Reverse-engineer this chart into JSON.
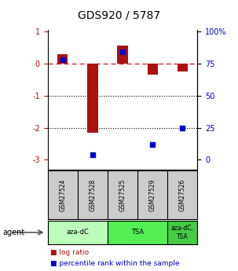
{
  "title": "GDS920 / 5787",
  "samples": [
    "GSM27524",
    "GSM27528",
    "GSM27525",
    "GSM27529",
    "GSM27526"
  ],
  "log_ratios": [
    0.3,
    -2.15,
    0.55,
    -0.35,
    -0.25
  ],
  "percentile_ranks": [
    78,
    4,
    84,
    12,
    25
  ],
  "bar_color_red": "#aa1111",
  "bar_color_blue": "#0000cc",
  "ylim": [
    -3.3,
    1.05
  ],
  "yticks_left": [
    -3,
    -2,
    -1,
    0,
    1
  ],
  "yticks_right_vals": [
    0,
    25,
    50,
    75,
    100
  ],
  "agent_groups": [
    {
      "label": "aza-dC",
      "start": 0,
      "end": 2,
      "color": "#bbffbb"
    },
    {
      "label": "TSA",
      "start": 2,
      "end": 4,
      "color": "#55ee55"
    },
    {
      "label": "aza-dC,\nTSA",
      "start": 4,
      "end": 5,
      "color": "#44cc44"
    }
  ],
  "legend_red": "log ratio",
  "legend_blue": "percentile rank within the sample",
  "hline_color": "#cc2222",
  "dotted_lines": [
    -1,
    -2
  ],
  "background_color": "#ffffff",
  "header_bg": "#cccccc",
  "bar_width": 0.35
}
